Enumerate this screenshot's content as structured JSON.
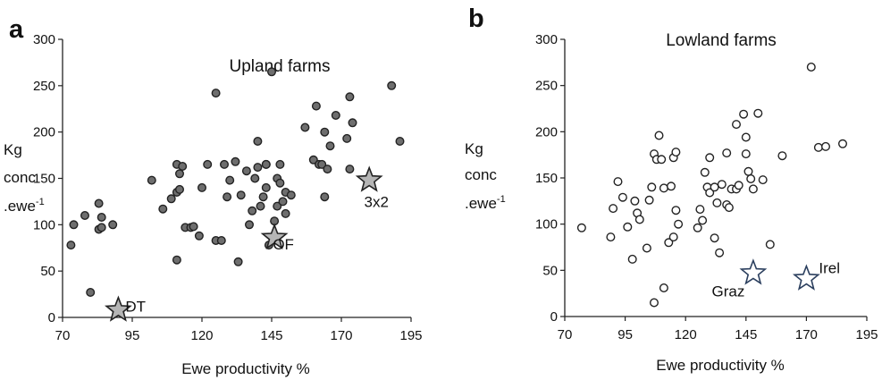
{
  "chart_data": [
    {
      "type": "scatter",
      "panel": "a",
      "title": "Upland farms",
      "xlabel": "Ewe productivity %",
      "ylabel": [
        "Kg",
        "conc",
        ".ewe",
        "-1"
      ],
      "xlim": [
        70,
        195
      ],
      "ylim": [
        0,
        300
      ],
      "xticks": [
        70,
        95,
        120,
        145,
        170,
        195
      ],
      "yticks": [
        0,
        50,
        100,
        150,
        200,
        250,
        300
      ],
      "grid": false,
      "marker": {
        "shape": "circle",
        "fill": "#6e6e6e",
        "stroke": "#222222"
      },
      "points": [
        [
          73,
          78
        ],
        [
          74,
          100
        ],
        [
          78,
          110
        ],
        [
          80,
          27
        ],
        [
          83,
          123
        ],
        [
          83,
          95
        ],
        [
          84,
          108
        ],
        [
          84,
          97
        ],
        [
          88,
          100
        ],
        [
          102,
          148
        ],
        [
          106,
          117
        ],
        [
          109,
          128
        ],
        [
          111,
          62
        ],
        [
          111,
          165
        ],
        [
          111,
          135
        ],
        [
          112,
          138
        ],
        [
          112,
          155
        ],
        [
          113,
          163
        ],
        [
          114,
          97
        ],
        [
          116,
          97
        ],
        [
          117,
          98
        ],
        [
          119,
          88
        ],
        [
          120,
          140
        ],
        [
          122,
          165
        ],
        [
          125,
          242
        ],
        [
          125,
          83
        ],
        [
          127,
          83
        ],
        [
          128,
          165
        ],
        [
          129,
          130
        ],
        [
          130,
          148
        ],
        [
          132,
          168
        ],
        [
          133,
          60
        ],
        [
          134,
          132
        ],
        [
          136,
          158
        ],
        [
          137,
          100
        ],
        [
          138,
          115
        ],
        [
          139,
          150
        ],
        [
          140,
          190
        ],
        [
          140,
          162
        ],
        [
          141,
          120
        ],
        [
          142,
          130
        ],
        [
          143,
          165
        ],
        [
          143,
          165
        ],
        [
          143,
          140
        ],
        [
          144,
          78
        ],
        [
          145,
          265
        ],
        [
          146,
          104
        ],
        [
          147,
          120
        ],
        [
          147,
          150
        ],
        [
          148,
          165
        ],
        [
          148,
          145
        ],
        [
          149,
          125
        ],
        [
          150,
          135
        ],
        [
          150,
          112
        ],
        [
          152,
          132
        ],
        [
          157,
          205
        ],
        [
          160,
          170
        ],
        [
          161,
          228
        ],
        [
          162,
          165
        ],
        [
          163,
          165
        ],
        [
          164,
          200
        ],
        [
          164,
          130
        ],
        [
          165,
          160
        ],
        [
          166,
          185
        ],
        [
          168,
          218
        ],
        [
          172,
          193
        ],
        [
          173,
          238
        ],
        [
          173,
          160
        ],
        [
          174,
          210
        ],
        [
          188,
          250
        ],
        [
          191,
          190
        ]
      ],
      "highlights": [
        {
          "label": "DT",
          "x": 90,
          "y": 8,
          "color": "#b5b5b5"
        },
        {
          "label": "OF",
          "x": 146,
          "y": 86,
          "color": "#b5b5b5"
        },
        {
          "label": "3x2",
          "x": 180,
          "y": 148,
          "color": "#b5b5b5"
        }
      ]
    },
    {
      "type": "scatter",
      "panel": "b",
      "title": "Lowland farms",
      "xlabel": "Ewe productivity %",
      "ylabel": [
        "Kg",
        "conc",
        ".ewe",
        "-1"
      ],
      "xlim": [
        70,
        195
      ],
      "ylim": [
        0,
        300
      ],
      "xticks": [
        70,
        95,
        120,
        145,
        170,
        195
      ],
      "yticks": [
        0,
        50,
        100,
        150,
        200,
        250,
        300
      ],
      "grid": false,
      "marker": {
        "shape": "circle",
        "fill": "#ffffff",
        "stroke": "#222222"
      },
      "points": [
        [
          77,
          96
        ],
        [
          89,
          86
        ],
        [
          90,
          117
        ],
        [
          92,
          146
        ],
        [
          94,
          129
        ],
        [
          96,
          97
        ],
        [
          98,
          62
        ],
        [
          99,
          125
        ],
        [
          100,
          112
        ],
        [
          101,
          105
        ],
        [
          104,
          74
        ],
        [
          105,
          126
        ],
        [
          106,
          140
        ],
        [
          107,
          15
        ],
        [
          107,
          176
        ],
        [
          108,
          170
        ],
        [
          109,
          196
        ],
        [
          110,
          170
        ],
        [
          111,
          31
        ],
        [
          111,
          139
        ],
        [
          113,
          80
        ],
        [
          114,
          141
        ],
        [
          115,
          86
        ],
        [
          115,
          172
        ],
        [
          116,
          178
        ],
        [
          116,
          115
        ],
        [
          117,
          100
        ],
        [
          125,
          96
        ],
        [
          126,
          116
        ],
        [
          127,
          104
        ],
        [
          128,
          156
        ],
        [
          129,
          140
        ],
        [
          130,
          172
        ],
        [
          130,
          134
        ],
        [
          132,
          140
        ],
        [
          132,
          85
        ],
        [
          133,
          123
        ],
        [
          134,
          69
        ],
        [
          135,
          143
        ],
        [
          137,
          121
        ],
        [
          137,
          177
        ],
        [
          138,
          118
        ],
        [
          139,
          138
        ],
        [
          141,
          138
        ],
        [
          141,
          208
        ],
        [
          142,
          142
        ],
        [
          144,
          219
        ],
        [
          145,
          194
        ],
        [
          145,
          176
        ],
        [
          146,
          157
        ],
        [
          147,
          149
        ],
        [
          148,
          138
        ],
        [
          150,
          220
        ],
        [
          152,
          148
        ],
        [
          155,
          78
        ],
        [
          160,
          174
        ],
        [
          172,
          270
        ],
        [
          175,
          183
        ],
        [
          178,
          184
        ],
        [
          185,
          187
        ]
      ],
      "highlights": [
        {
          "label": "Graz",
          "x": 148,
          "y": 47,
          "color": "#ffffff"
        },
        {
          "label": "Irel",
          "x": 170,
          "y": 41,
          "color": "#ffffff"
        }
      ]
    }
  ]
}
